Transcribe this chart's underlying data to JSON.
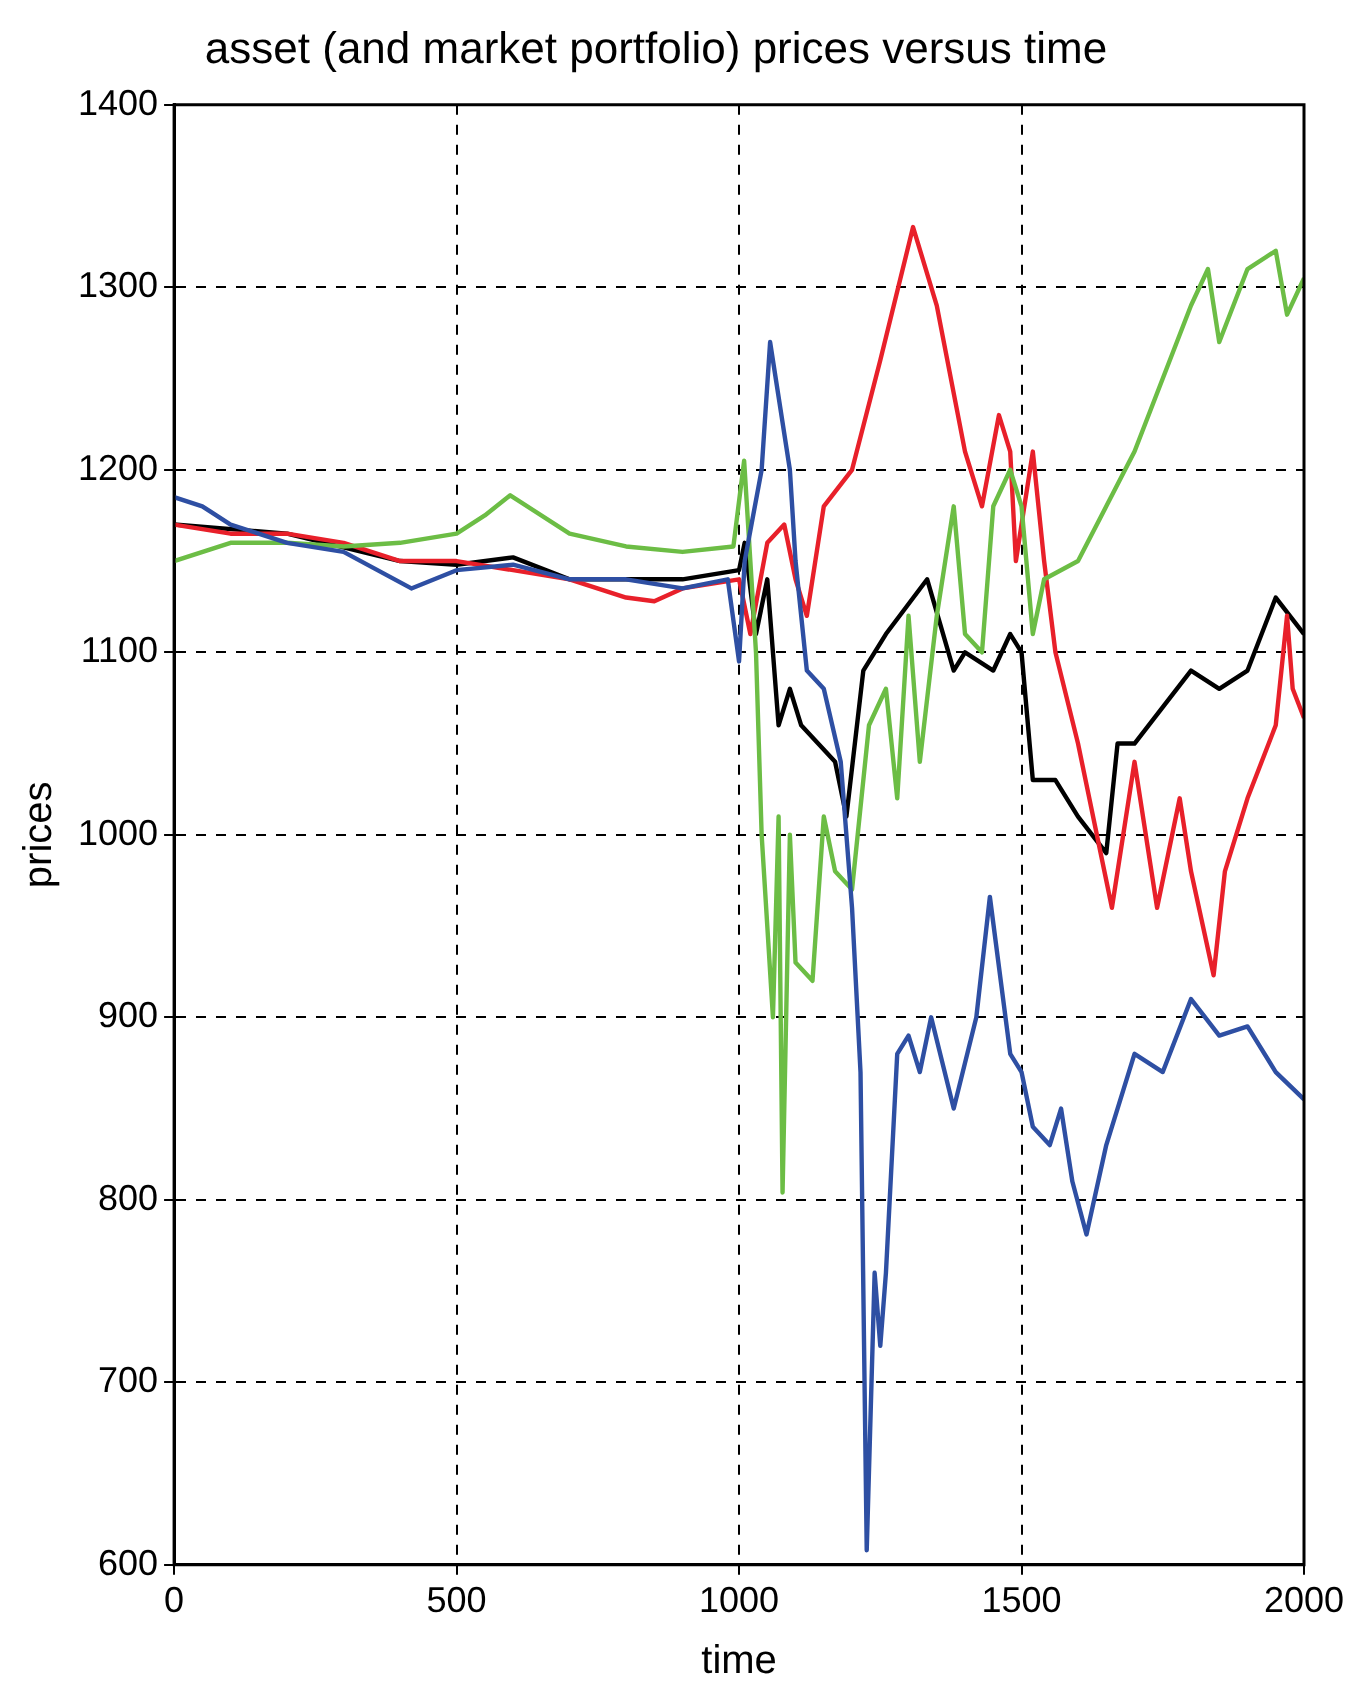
{
  "chart_data": {
    "type": "line",
    "title": "asset (and market portfolio) prices versus time",
    "xlabel": "time",
    "ylabel": "prices",
    "xlim": [
      0,
      2000
    ],
    "xticks": [
      0,
      500,
      1000,
      1500,
      2000
    ],
    "ylim": [
      600,
      1400
    ],
    "yticks": [
      600,
      700,
      800,
      900,
      1000,
      1100,
      1200,
      1300,
      1400
    ],
    "grid": true,
    "legend": false,
    "marker": "none",
    "line_style": "solid",
    "series": [
      {
        "color": "#2e4fa3",
        "x": [
          0,
          50,
          100,
          200,
          300,
          420,
          500,
          600,
          700,
          800,
          900,
          980,
          1000,
          1010,
          1040,
          1055,
          1090,
          1100,
          1120,
          1150,
          1180,
          1200,
          1215,
          1226,
          1240,
          1250,
          1260,
          1280,
          1300,
          1320,
          1340,
          1380,
          1420,
          1444,
          1480,
          1500,
          1520,
          1550,
          1570,
          1590,
          1615,
          1650,
          1700,
          1750,
          1800,
          1850,
          1900,
          1950,
          2000
        ],
        "values": [
          1185,
          1180,
          1170,
          1160,
          1155,
          1135,
          1145,
          1148,
          1140,
          1140,
          1135,
          1140,
          1095,
          1150,
          1200,
          1270,
          1200,
          1150,
          1090,
          1080,
          1040,
          960,
          870,
          608,
          760,
          720,
          760,
          880,
          890,
          870,
          900,
          850,
          900,
          966,
          880,
          870,
          840,
          830,
          850,
          810,
          781,
          830,
          880,
          870,
          910,
          890,
          895,
          870,
          855
        ]
      },
      {
        "color": "#6cbd45",
        "x": [
          0,
          100,
          200,
          300,
          400,
          500,
          550,
          595,
          700,
          800,
          900,
          990,
          1009,
          1020,
          1030,
          1040,
          1060,
          1070,
          1077,
          1090,
          1100,
          1130,
          1150,
          1170,
          1200,
          1230,
          1260,
          1280,
          1300,
          1320,
          1350,
          1380,
          1400,
          1430,
          1450,
          1480,
          1500,
          1520,
          1540,
          1600,
          1650,
          1700,
          1750,
          1800,
          1830,
          1850,
          1900,
          1950,
          1970,
          2000
        ],
        "values": [
          1150,
          1160,
          1160,
          1158,
          1160,
          1165,
          1175,
          1186,
          1165,
          1158,
          1155,
          1158,
          1205,
          1150,
          1100,
          1000,
          900,
          1010,
          804,
          1000,
          930,
          920,
          1010,
          980,
          970,
          1060,
          1080,
          1020,
          1120,
          1040,
          1120,
          1180,
          1110,
          1100,
          1180,
          1200,
          1180,
          1110,
          1140,
          1150,
          1180,
          1210,
          1250,
          1290,
          1310,
          1270,
          1310,
          1320,
          1285,
          1305
        ]
      },
      {
        "color": "#e8202a",
        "x": [
          0,
          100,
          200,
          300,
          400,
          500,
          600,
          700,
          800,
          850,
          900,
          1000,
          1020,
          1050,
          1080,
          1100,
          1120,
          1150,
          1200,
          1250,
          1308,
          1350,
          1400,
          1430,
          1460,
          1480,
          1490,
          1510,
          1520,
          1540,
          1560,
          1600,
          1640,
          1660,
          1680,
          1700,
          1740,
          1780,
          1800,
          1840,
          1860,
          1900,
          1950,
          1970,
          1980,
          2000
        ],
        "values": [
          1170,
          1165,
          1165,
          1160,
          1150,
          1150,
          1145,
          1140,
          1130,
          1128,
          1135,
          1140,
          1110,
          1160,
          1170,
          1140,
          1120,
          1180,
          1200,
          1260,
          1333,
          1290,
          1210,
          1180,
          1230,
          1210,
          1150,
          1190,
          1210,
          1150,
          1100,
          1050,
          990,
          960,
          1000,
          1040,
          960,
          1020,
          980,
          923,
          980,
          1020,
          1060,
          1120,
          1080,
          1064
        ]
      },
      {
        "color": "#000000",
        "x": [
          0,
          200,
          400,
          500,
          600,
          700,
          800,
          900,
          1000,
          1010,
          1030,
          1050,
          1070,
          1090,
          1110,
          1140,
          1170,
          1190,
          1220,
          1260,
          1333,
          1380,
          1400,
          1450,
          1480,
          1500,
          1520,
          1560,
          1600,
          1650,
          1670,
          1700,
          1750,
          1800,
          1850,
          1900,
          1950,
          2000
        ],
        "values": [
          1170,
          1165,
          1150,
          1148,
          1152,
          1140,
          1140,
          1140,
          1145,
          1160,
          1110,
          1140,
          1060,
          1080,
          1060,
          1050,
          1040,
          1010,
          1090,
          1110,
          1140,
          1090,
          1100,
          1090,
          1110,
          1100,
          1030,
          1030,
          1010,
          990,
          1050,
          1050,
          1070,
          1090,
          1080,
          1090,
          1130,
          1110
        ]
      }
    ]
  }
}
